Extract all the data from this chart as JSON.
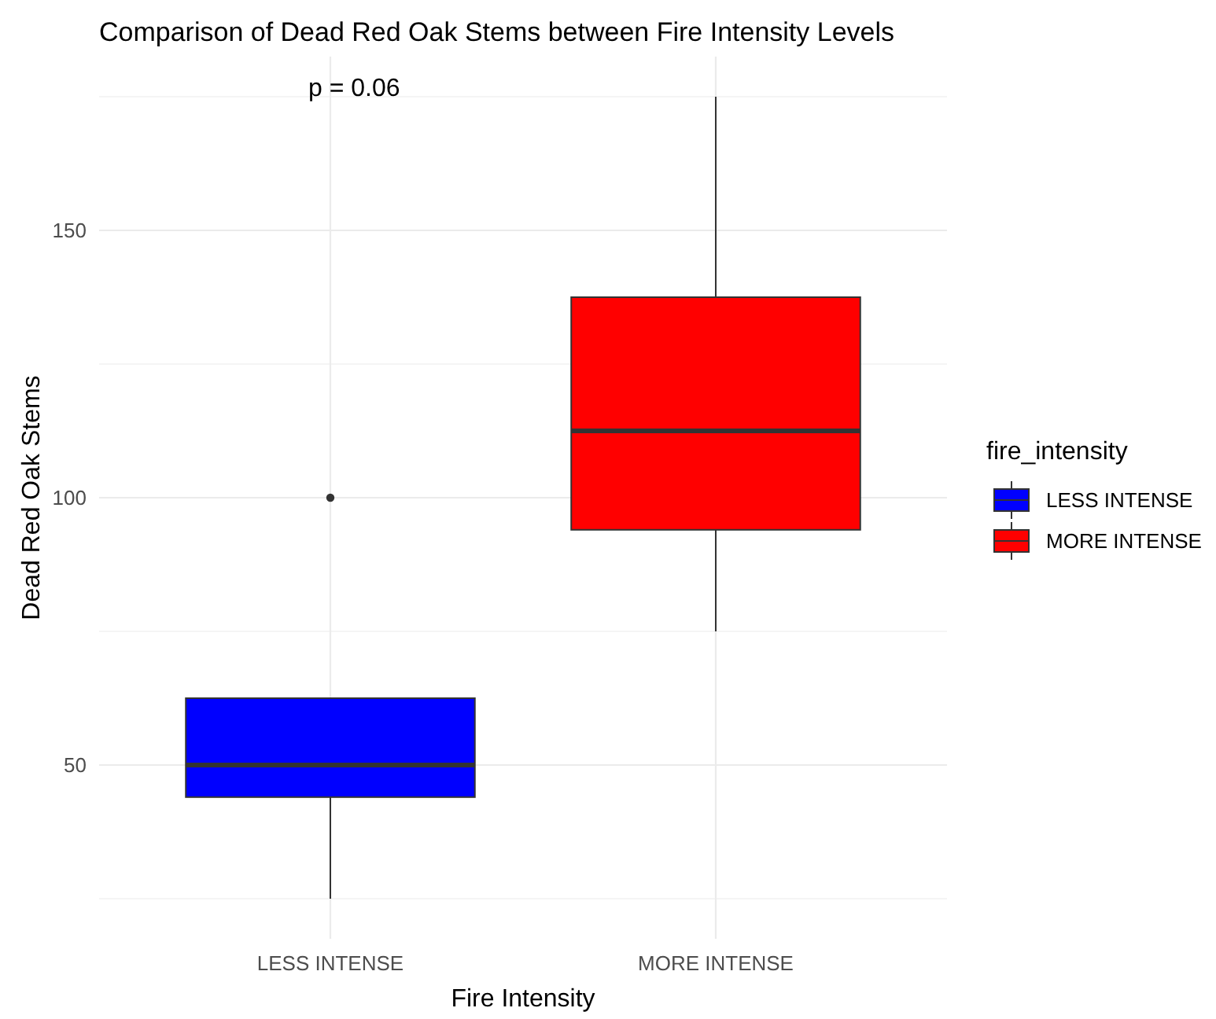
{
  "chart_data": {
    "type": "box",
    "title": "Comparison of Dead Red Oak Stems between Fire Intensity Levels",
    "xlabel": "Fire Intensity",
    "ylabel": "Dead Red Oak Stems",
    "legend_title": "fire_intensity",
    "categories": [
      "LESS INTENSE",
      "MORE INTENSE"
    ],
    "series": [
      {
        "name": "LESS INTENSE",
        "color": "#0000ff",
        "boxes": [
          {
            "low": 25,
            "q1": 44,
            "median": 50,
            "q3": 62.5,
            "high": 62.5,
            "outliers": [
              100
            ]
          },
          null
        ]
      },
      {
        "name": "MORE INTENSE",
        "color": "#ff0000",
        "boxes": [
          null,
          {
            "low": 75,
            "q1": 94,
            "median": 112.5,
            "q3": 137.5,
            "high": 175
          }
        ]
      }
    ],
    "ylim": [
      17.5,
      182.5
    ],
    "yticks": [
      {
        "value": 25,
        "label": null
      },
      50,
      {
        "value": 75,
        "label": null
      },
      100,
      {
        "value": 125,
        "label": null
      },
      150,
      {
        "value": 175,
        "label": null
      }
    ],
    "grid": true,
    "legend": "right",
    "annotations": [
      "p = 0.06"
    ]
  }
}
